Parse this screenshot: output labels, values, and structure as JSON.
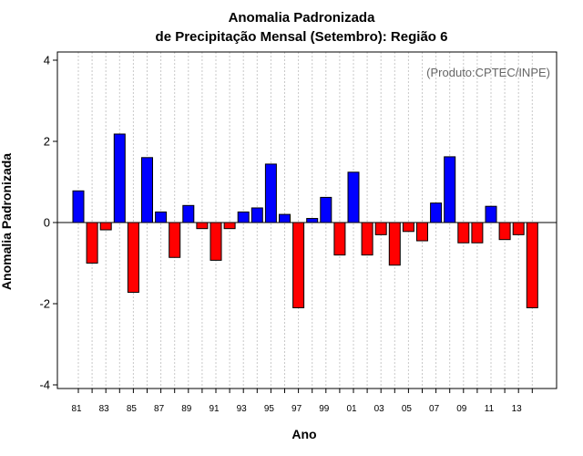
{
  "chart_data": {
    "type": "bar",
    "title": "Anomalia Padronizada",
    "subtitle": "de Precipitação Mensal (Setembro): Região 6",
    "xlabel": "Ano",
    "ylabel": "Anomalia Padronizada",
    "annotation": "(Produto:CPTEC/INPE)",
    "ylim": [
      -4,
      4
    ],
    "yticks": [
      "4",
      "2",
      "0",
      "-2",
      "-4"
    ],
    "ytick_values": [
      4,
      2,
      0,
      -2,
      -4
    ],
    "categories": [
      "1981",
      "1982",
      "1983",
      "1984",
      "1985",
      "1986",
      "1987",
      "1988",
      "1989",
      "1990",
      "1991",
      "1992",
      "1993",
      "1994",
      "1995",
      "1996",
      "1997",
      "1998",
      "1999",
      "2000",
      "2001",
      "2002",
      "2003",
      "2004",
      "2005",
      "2006",
      "2007",
      "2008",
      "2009",
      "2010",
      "2011",
      "2012",
      "2013",
      "2014"
    ],
    "values": [
      0.78,
      -1.0,
      -0.18,
      2.18,
      -1.72,
      1.6,
      0.26,
      -0.86,
      0.42,
      -0.15,
      -0.93,
      -0.15,
      0.26,
      0.36,
      1.44,
      0.2,
      -2.1,
      0.1,
      0.62,
      -0.8,
      1.24,
      -0.8,
      -0.3,
      -1.05,
      -0.22,
      -0.45,
      0.48,
      1.62,
      -0.5,
      -0.5,
      0.4,
      -0.42,
      -0.3,
      -2.1
    ],
    "xtick_labels": [
      "81",
      "83",
      "85",
      "87",
      "89",
      "91",
      "93",
      "95",
      "97",
      "99",
      "01",
      "03",
      "05",
      "07",
      "09",
      "11",
      "13"
    ],
    "grid": "vertical dotted",
    "colors": {
      "positive": "#0000ff",
      "negative": "#ff0000",
      "grid": "#c8c8c8",
      "zero_line": "#000000"
    }
  }
}
